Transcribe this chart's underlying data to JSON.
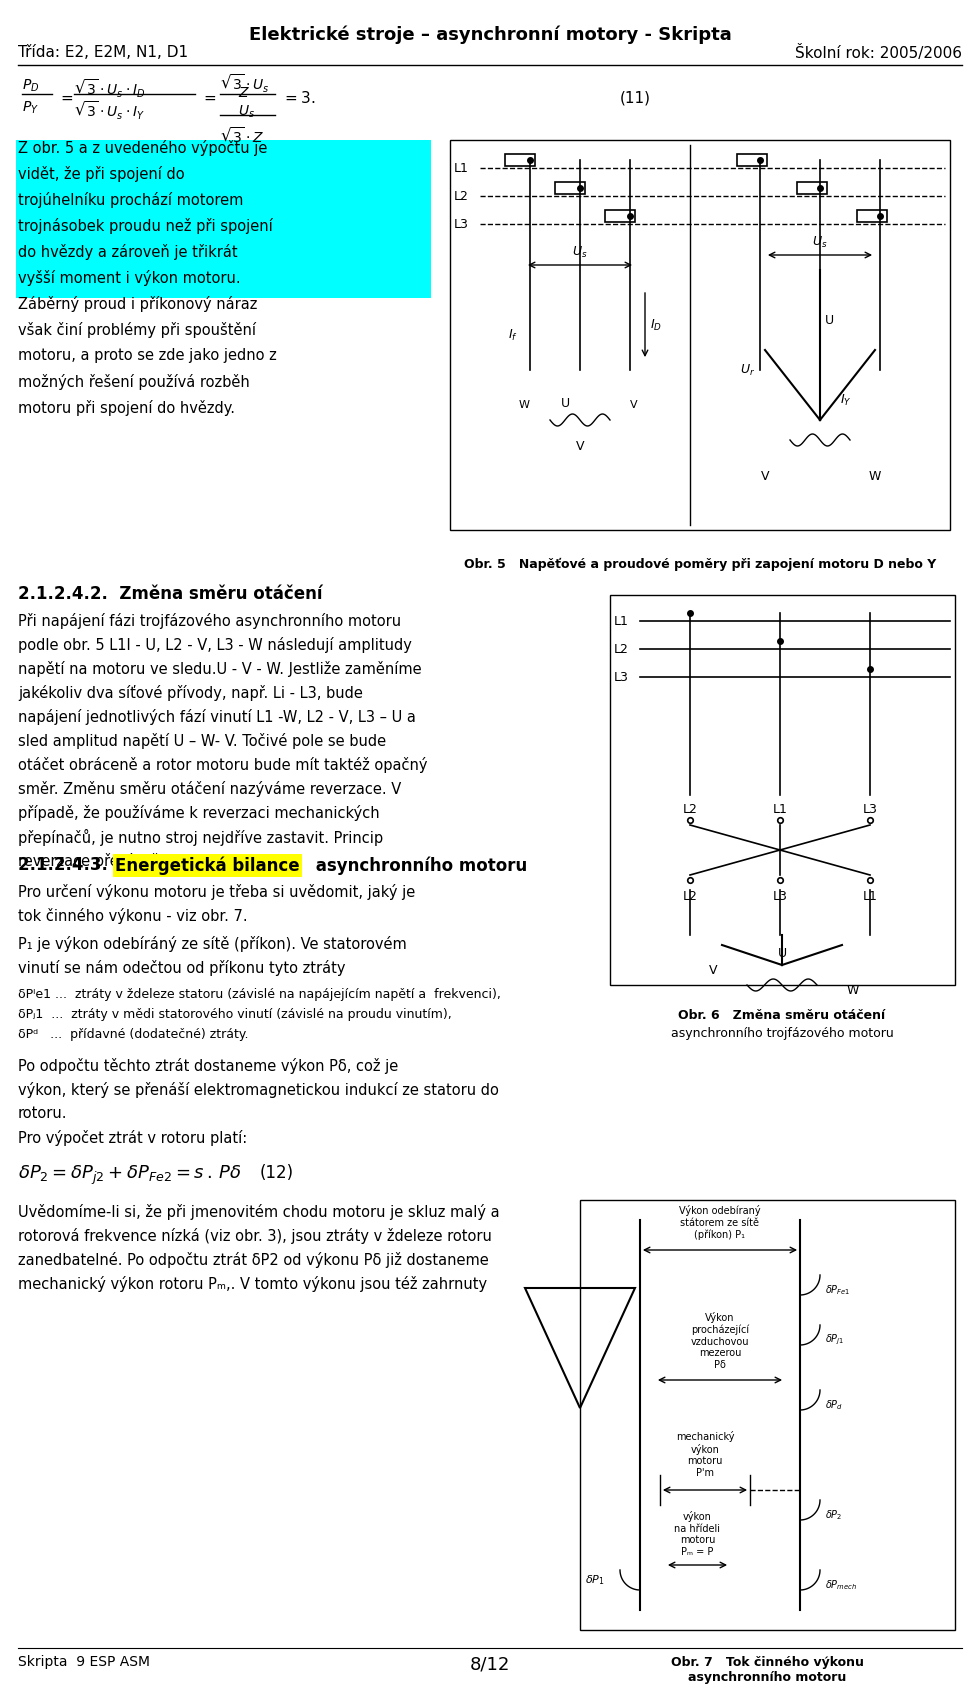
{
  "title": "Elektrické stroje – asynchronní motory - Skripta",
  "left_header": "Třída: E2, E2M, N1, D1",
  "right_header": "Školní rok: 2005/2006",
  "bg_color": "#ffffff",
  "text_color": "#000000",
  "highlight_color": "#00ffff",
  "page_number": "8/12",
  "footer_left": "Skripta  9 ESP ASM",
  "eq_number": "(11)",
  "eq_number2": "(12)",
  "para1_lines": [
    "Z obr. 5 a z uvedeného výpočtu je",
    "vidět, že při spojení do",
    "trojúhelníku prochází motorem",
    "trojnásobek proudu než při spojení",
    "do hvězdy a zároveň je třikrát",
    "vyšší moment i výkon motoru.",
    "Záběrný proud i příkonový náraz",
    "však činí problémy při spouštění",
    "motoru, a proto se zde jako jedno z",
    "možných řešení používá rozběh",
    "motoru při spojení do hvězdy."
  ],
  "para1_highlight": [
    1,
    2,
    3,
    4,
    5,
    6
  ],
  "fig5_caption": "Obr. 5   Napěťové a proudové poměry při zapojení motoru D nebo Y",
  "section_242": "2.1.2.4.2.  Změna směru otáčení",
  "para2_lines": [
    "Při napájení fázi trojfázového asynchronního motoru",
    "podle obr. 5 L1I - U, L2 - V, L3 - W následují amplitudy",
    "napětí na motoru ve sledu.U - V - W. Jestliže zaměníme",
    "jakékoliv dva síťové přívody, např. Li - L3, bude",
    "napájení jednotlivých fází vinutí L1 -W, L2 - V, L3 – U a",
    "sled amplitud napětí U – W- V. Točivé pole se bude",
    "otáčet obráceně a rotor motoru bude mít taktéž opačný",
    "směr. Změnu směru otáčení nazýváme reverzace. V",
    "případě, že používáme k reverzaci mechanických",
    "přepínačů, je nutno stroj nejdříve zastavit. Princip",
    "reverzace přepínačem je na obr.6."
  ],
  "section_243_prefix": "2.1.2.4.3.  ",
  "section_243_highlight": "Energetická bilance",
  "section_243_suffix": " asynchronního motoru",
  "fig6_caption_line1": "Obr. 6   Změna směru otáčení",
  "fig6_caption_line2": "asynchronního trojfázového motoru",
  "para3_lines": [
    "Pro určení výkonu motoru je třeba si uvědomit, jaký je",
    "tok činného výkonu - viz obr. 7."
  ],
  "para4_lines": [
    "P₁ je výkon odebíráný ze sítě (příkon). Ve statorovém",
    "vinutí se nám odečtou od příkonu tyto ztráty"
  ],
  "loss_lines": [
    "δPᴵe1 ...  ztráty v ždeleze statoru (závislé na napájejícím napětí a  frekvenci),",
    "δPⱼ1  ...  ztráty v mědi statorového vinutí (závislé na proudu vinutím),",
    "δPᵈ   ...  přídavné (dodatečné) ztráty."
  ],
  "para5_lines": [
    "Po odpočtu těchto ztrát dostaneme výkon Pδ, což je",
    "výkon, který se přenáší elektromagnetickou indukcí ze statoru do",
    "rotoru.",
    "Pro výpočet ztrát v rotoru platí:"
  ],
  "para6_lines": [
    "Uvědomíme-li si, že při jmenovitém chodu motoru je skluz malý a",
    "rotorová frekvence nízká (viz obr. 3), jsou ztráty v ždeleze rotoru",
    "zanedbatelné. Po odpočtu ztrát δP2 od výkonu Pδ již dostaneme",
    "mechanický výkon rotoru Pₘ,. V tomto výkonu jsou též zahrnuty"
  ],
  "fig7_box1": "Výkon odebíraný\nstátorem ze sítě\n(příkon) P₁",
  "fig7_box2": "Výkon\nprocházející\nvzduchovou\nmezerou\nPδ",
  "fig7_box3": "mechanický\nvýkon\nmotoru\nP'm",
  "fig7_box4": "výkon\nna hřídeli\nmotoru\nPₘ = P",
  "fig7_caption": "Obr. 7   Tok činného výkonu\nasynchronního motoru"
}
